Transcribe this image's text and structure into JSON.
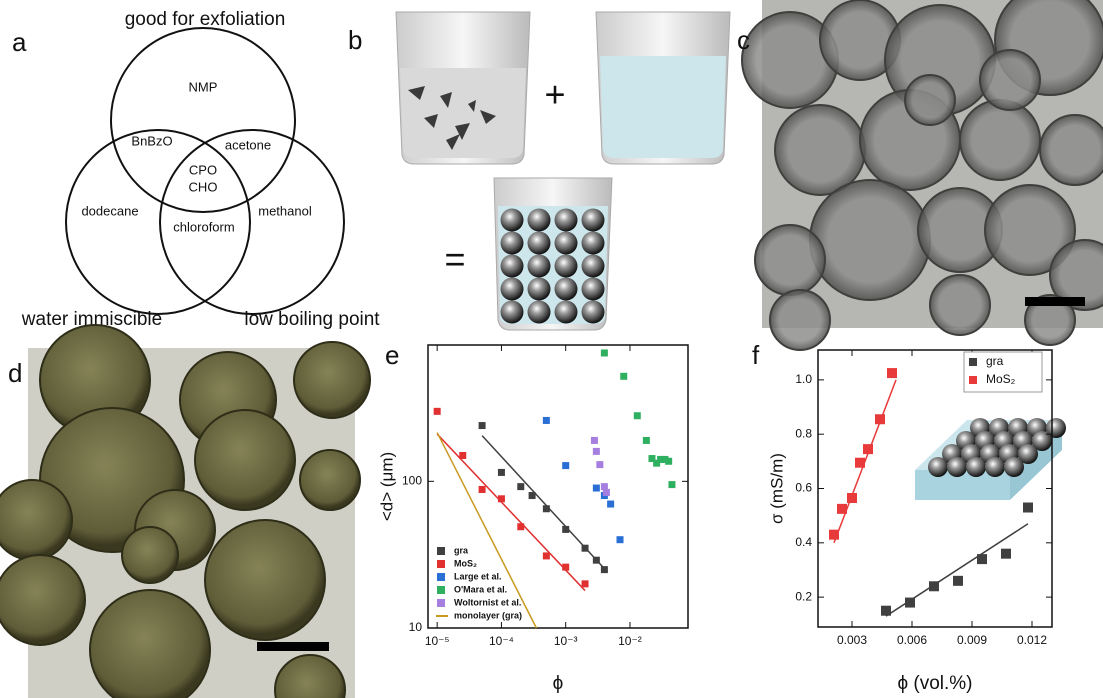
{
  "panel_labels": [
    "a",
    "b",
    "c",
    "d",
    "e",
    "f"
  ],
  "venn": {
    "sets": [
      "good for exfoliation",
      "water immiscible",
      "low boiling point"
    ],
    "regions": [
      "NMP",
      "BnBzO",
      "acetone",
      "CPO",
      "CHO",
      "dodecane",
      "chloroform",
      "methanol"
    ]
  },
  "beaker_ops": [
    "+",
    "="
  ],
  "chart_data": [
    {
      "type": "scatter",
      "log_x": true,
      "log_y": true,
      "xlabel": "ϕ",
      "ylabel": "<d> (μm)",
      "xlim": [
        7.2e-06,
        0.08
      ],
      "ylim": [
        10,
        850
      ],
      "xticks": [
        {
          "value": 1e-05,
          "label": "10⁻⁵"
        },
        {
          "value": 0.0001,
          "label": "10⁻⁴"
        },
        {
          "value": 0.001,
          "label": "10⁻³"
        },
        {
          "value": 0.01,
          "label": "10⁻²"
        }
      ],
      "yticks": [
        10,
        100
      ],
      "legend": "lower-left",
      "series": [
        {
          "name": "gra",
          "color": "#404040",
          "kind": "scatter",
          "x": [
            5e-05,
            0.0001,
            0.0002,
            0.0003,
            0.0005,
            0.001,
            0.002,
            0.003,
            0.004
          ],
          "values": [
            240,
            115,
            92,
            80,
            65,
            47,
            35,
            29,
            25
          ]
        },
        {
          "name": "MoS₂",
          "color": "#e03030",
          "kind": "scatter",
          "x": [
            1e-05,
            2.5e-05,
            5e-05,
            0.0001,
            0.0002,
            0.0005,
            0.001,
            0.002
          ],
          "values": [
            300,
            150,
            88,
            76,
            49,
            31,
            26,
            20
          ]
        },
        {
          "name": "Large et al.",
          "color": "#2a6fd6",
          "kind": "scatter",
          "x": [
            0.0005,
            0.001,
            0.003,
            0.004,
            0.005,
            0.007
          ],
          "values": [
            260,
            128,
            90,
            80,
            70,
            40
          ]
        },
        {
          "name": "O'Mara et al.",
          "color": "#2fb060",
          "kind": "scatter",
          "x": [
            0.004,
            0.008,
            0.013,
            0.018,
            0.022,
            0.026,
            0.03,
            0.035,
            0.04,
            0.045
          ],
          "values": [
            750,
            520,
            280,
            190,
            143,
            133,
            141,
            141,
            137,
            95
          ]
        },
        {
          "name": "Woltornist et al.",
          "color": "#a67ee0",
          "kind": "scatter",
          "x": [
            0.0028,
            0.003,
            0.0034,
            0.004,
            0.0043
          ],
          "values": [
            190,
            160,
            130,
            92,
            84
          ]
        },
        {
          "name": "monolayer (gra)",
          "color": "#c89a20",
          "kind": "line",
          "x": [
            1e-05,
            0.00035
          ],
          "values": [
            215,
            10
          ]
        }
      ],
      "fits": [
        {
          "color": "#404040",
          "x": [
            5e-05,
            0.0045
          ],
          "values": [
            205,
            24
          ]
        },
        {
          "color": "#e03030",
          "x": [
            1e-05,
            0.002
          ],
          "values": [
            210,
            18
          ]
        }
      ]
    },
    {
      "type": "scatter",
      "log_x": false,
      "log_y": false,
      "xlabel": "ϕ (vol.%)",
      "ylabel": "σ (mS/m)",
      "xlim": [
        0.0013,
        0.013
      ],
      "ylim": [
        0.09,
        1.11
      ],
      "xticks": [
        0.003,
        0.006,
        0.009,
        0.012
      ],
      "yticks": [
        0.2,
        0.4,
        0.6,
        0.8,
        {
          "value": 1.0,
          "label": "1.0"
        }
      ],
      "legend": "upper-right",
      "series": [
        {
          "name": "gra",
          "color": "#404040",
          "kind": "scatter",
          "x": [
            0.0047,
            0.0059,
            0.0071,
            0.0083,
            0.0095,
            0.0107,
            0.0118
          ],
          "values": [
            0.15,
            0.18,
            0.24,
            0.26,
            0.34,
            0.36,
            0.53
          ]
        },
        {
          "name": "MoS₂",
          "color": "#e83a3a",
          "kind": "scatter",
          "x": [
            0.0021,
            0.0025,
            0.003,
            0.0034,
            0.0038,
            0.0044,
            0.005
          ],
          "values": [
            0.43,
            0.525,
            0.565,
            0.695,
            0.745,
            0.855,
            1.025
          ]
        }
      ],
      "fits": [
        {
          "color": "#404040",
          "x": [
            0.0047,
            0.0118
          ],
          "values": [
            0.13,
            0.47
          ]
        },
        {
          "color": "#e83a3a",
          "x": [
            0.0021,
            0.0052
          ],
          "values": [
            0.4,
            1.0
          ]
        }
      ]
    }
  ]
}
